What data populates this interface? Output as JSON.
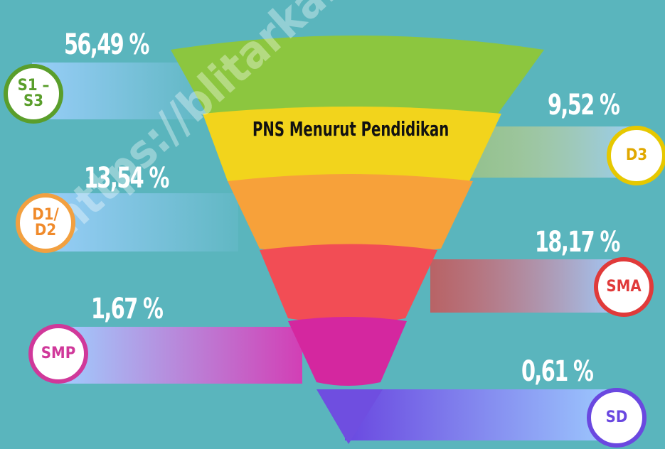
{
  "title": "PNS Menurut Pendidikan",
  "watermark": "https://blitarkab.bps.go.id",
  "items": [
    {
      "label": "S1 – S3",
      "value": "56,49 %"
    },
    {
      "label": "D3",
      "value": "9,52 %"
    },
    {
      "label": "D1/ D2",
      "value": "13,54 %"
    },
    {
      "label": "SMA",
      "value": "18,17 %"
    },
    {
      "label": "SMP",
      "value": "1,67 %"
    },
    {
      "label": "SD",
      "value": "0,61 %"
    }
  ]
}
